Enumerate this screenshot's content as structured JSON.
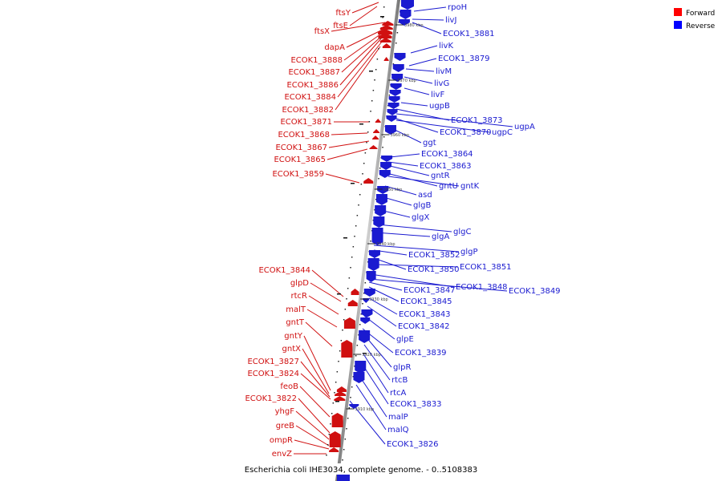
{
  "caption": "Escherichia coli IHE3034, complete genome. - 0..5108383",
  "legend": [
    {
      "label": "Forward",
      "color": "#ff0000"
    },
    {
      "label": "Reverse",
      "color": "#0000ff"
    }
  ],
  "ticks": [
    "3980 kbp",
    "3970 kbp",
    "3960 kbp",
    "3950 kbp",
    "3940 kbp",
    "3930 kbp",
    "3920 kbp",
    "3910 kbp"
  ],
  "forward_genes": [
    "ftsY",
    "ftsE",
    "ftsX",
    "dapA",
    "ECOK1_3888",
    "ECOK1_3887",
    "ECOK1_3886",
    "ECOK1_3884",
    "ECOK1_3882",
    "ECOK1_3871",
    "ECOK1_3868",
    "ECOK1_3867",
    "ECOK1_3865",
    "ECOK1_3859",
    "ECOK1_3844",
    "glpD",
    "rtcR",
    "malT",
    "gntT",
    "gntY",
    "gntX",
    "ECOK1_3827",
    "ECOK1_3824",
    "feoB",
    "ECOK1_3822",
    "yhgF",
    "greB",
    "ompR",
    "envZ"
  ],
  "reverse_genes": [
    "rpoH",
    "livJ",
    "ECOK1_3881",
    "livK",
    "ECOK1_3879",
    "livM",
    "livG",
    "livF",
    "ugpB",
    "ECOK1_3873",
    "ugpA",
    "ECOK1_3870",
    "ugpC",
    "ggt",
    "ECOK1_3864",
    "ECOK1_3863",
    "gntR",
    "gntU",
    "gntK",
    "asd",
    "glgB",
    "glgX",
    "glgC",
    "glgA",
    "glgP",
    "ECOK1_3852",
    "ECOK1_3851",
    "ECOK1_3850",
    "ECOK1_3848",
    "ECOK1_3849",
    "ECOK1_3847",
    "ECOK1_3845",
    "ECOK1_3843",
    "ECOK1_3842",
    "glpE",
    "ECOK1_3839",
    "glpR",
    "rtcB",
    "rtcA",
    "ECOK1_3833",
    "malP",
    "malQ",
    "ECOK1_3826"
  ]
}
